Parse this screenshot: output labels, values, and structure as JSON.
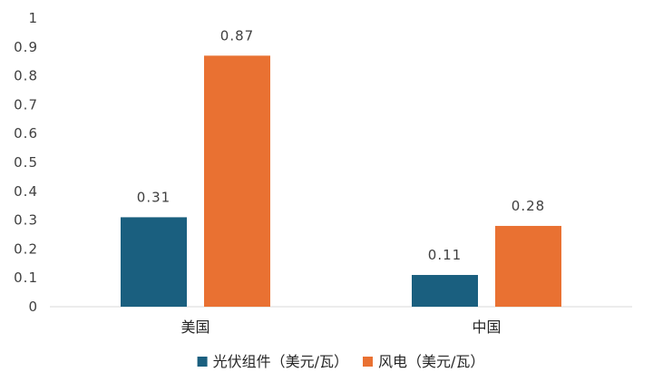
{
  "chart_data": {
    "type": "bar",
    "categories": [
      "美国",
      "中国"
    ],
    "series": [
      {
        "name": "光伏组件（美元/瓦）",
        "values": [
          0.31,
          0.11
        ],
        "labels": [
          "0.31",
          "0.11"
        ],
        "color": "#1a5f7f"
      },
      {
        "name": "风电（美元/瓦）",
        "values": [
          0.87,
          0.28
        ],
        "labels": [
          "0.87",
          "0.28"
        ],
        "color": "#e97132"
      }
    ],
    "ylim": [
      0,
      1
    ],
    "yticks": [
      "0",
      "0.1",
      "0.2",
      "0.3",
      "0.4",
      "0.5",
      "0.6",
      "0.7",
      "0.8",
      "0.9",
      "1"
    ],
    "grid": false,
    "legend_position": "bottom",
    "axis_color": "#d9d9d9"
  }
}
